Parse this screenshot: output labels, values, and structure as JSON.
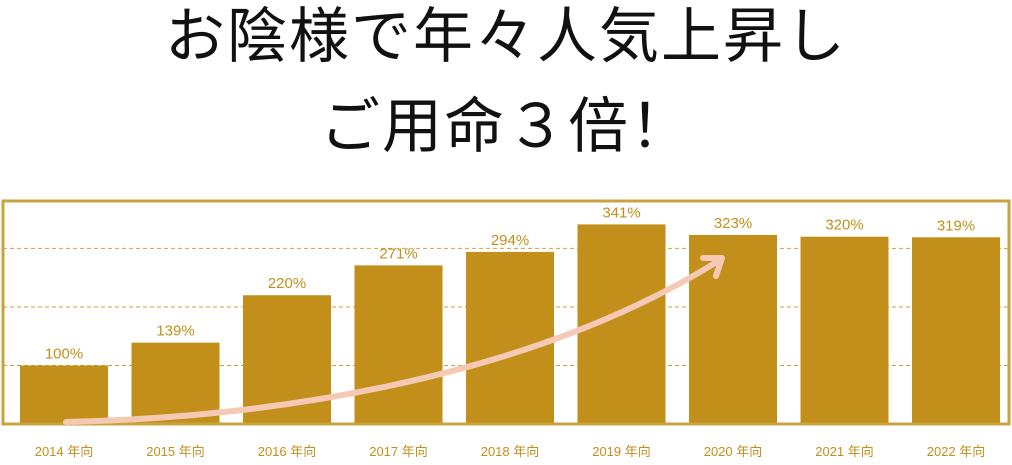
{
  "title_lines": [
    "お陰様で年々人気上昇し",
    "ご用命３倍！"
  ],
  "chart_data": {
    "type": "bar",
    "categories": [
      "2014 年向",
      "2015 年向",
      "2016 年向",
      "2017 年向",
      "2018 年向",
      "2019 年向",
      "2020 年向",
      "2021 年向",
      "2022 年向"
    ],
    "values": [
      100,
      139,
      220,
      271,
      294,
      341,
      323,
      320,
      319
    ],
    "data_labels": [
      "100%",
      "139%",
      "220%",
      "271%",
      "294%",
      "341%",
      "323%",
      "320%",
      "319%"
    ],
    "ylim": [
      0,
      400
    ],
    "grid": "dashed horizontal",
    "annotation": "upward trend arrow"
  },
  "colors": {
    "bar": "#c28f1a",
    "frame": "#c9a33e",
    "grid": "#c9a33e",
    "label": "#c28f1a",
    "arrow": "#f6c9b5",
    "title": "#111111"
  }
}
